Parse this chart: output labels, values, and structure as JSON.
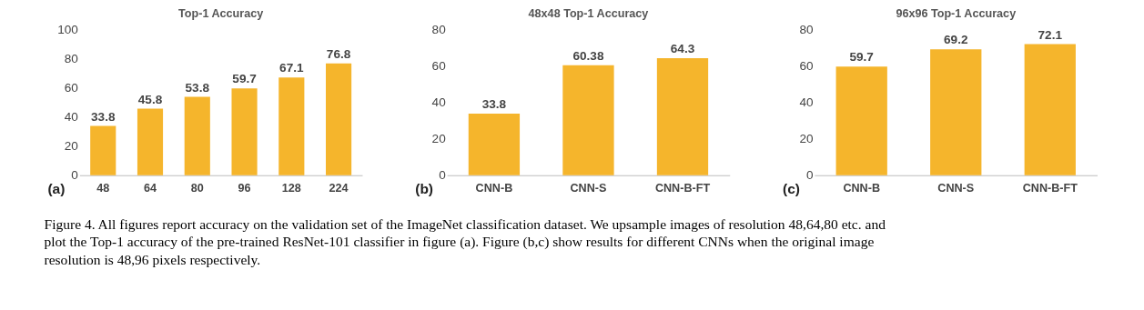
{
  "chart_data": [
    {
      "type": "bar",
      "title": "Top-1 Accuracy",
      "categories": [
        "48",
        "64",
        "80",
        "96",
        "128",
        "224"
      ],
      "values": [
        33.8,
        45.8,
        53.8,
        59.7,
        67.1,
        76.8
      ],
      "color": "#f5b52c",
      "ylim": [
        0,
        100
      ],
      "yticks": [
        0,
        20,
        40,
        60,
        80,
        100
      ],
      "grid": false,
      "data_labels": true,
      "annotations": [
        "(a)",
        "Figure 4. All figures report accuracy on the validation set of the ImageNet classification dataset. We upsample images of resolution 48,64,80 etc. and plot the Top-1 accuracy of the pre-trained ResNet-101 classifier in figure (a). Figure (b,c) show results for different CNNs when the original image resolution is 48,96 pixels respectively."
      ]
    },
    {
      "type": "bar",
      "title": "48x48 Top-1 Accuracy",
      "categories": [
        "CNN-B",
        "CNN-S",
        "CNN-B-FT"
      ],
      "values": [
        33.8,
        60.38,
        64.3
      ],
      "color": "#f5b52c",
      "ylim": [
        0,
        80
      ],
      "yticks": [
        0,
        20,
        40,
        60,
        80
      ],
      "grid": false,
      "data_labels": true,
      "annotations": [
        "(b)"
      ]
    },
    {
      "type": "bar",
      "title": "96x96 Top-1 Accuracy",
      "categories": [
        "CNN-B",
        "CNN-S",
        "CNN-B-FT"
      ],
      "values": [
        59.7,
        69.2,
        72.1
      ],
      "color": "#f5b52c",
      "ylim": [
        0,
        80
      ],
      "yticks": [
        0,
        20,
        40,
        60,
        80
      ],
      "grid": false,
      "data_labels": true,
      "annotations": [
        "(c)"
      ]
    }
  ]
}
